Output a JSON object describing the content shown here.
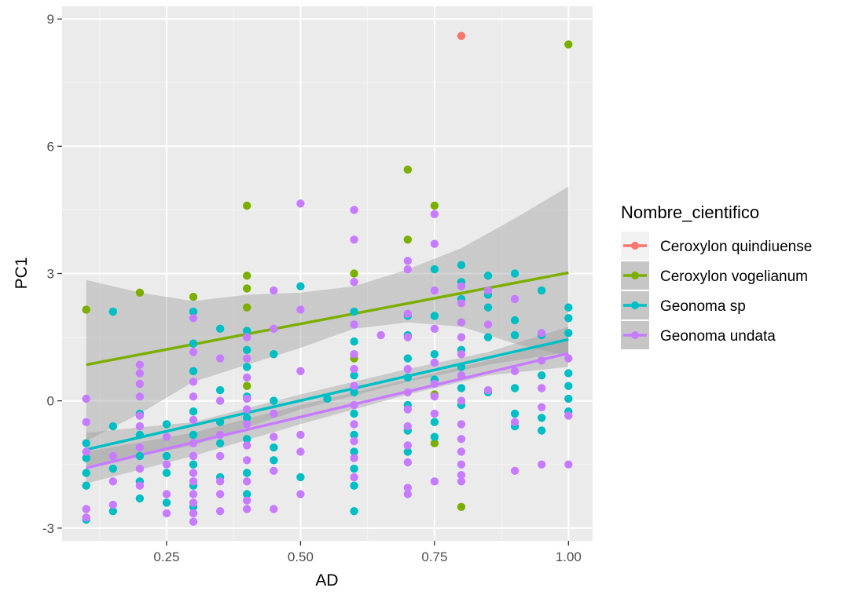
{
  "chart_data": {
    "type": "scatter",
    "xlabel": "AD",
    "ylabel": "PC1",
    "xlim": [
      0.055,
      1.045
    ],
    "ylim": [
      -3.3,
      9.3
    ],
    "x_ticks": [
      0.25,
      0.5,
      0.75,
      1.0
    ],
    "x_tick_labels": [
      "0.25",
      "0.50",
      "0.75",
      "1.00"
    ],
    "y_ticks": [
      -3,
      0,
      3,
      6,
      9
    ],
    "y_tick_labels": [
      "-3",
      "0",
      "3",
      "6",
      "9"
    ],
    "grid": true,
    "panel_color": "#ebebeb",
    "legend": {
      "title": "Nombre_cientifico",
      "position": "right"
    },
    "series": [
      {
        "name": "Ceroxylon quindiuense",
        "color": "#f8766d",
        "points": [
          [
            0.8,
            8.6
          ]
        ]
      },
      {
        "name": "Ceroxylon vogelianum",
        "color": "#7cae00",
        "fit": [
          [
            0.1,
            0.85
          ],
          [
            1.0,
            3.02
          ]
        ],
        "band": {
          "x": [
            0.1,
            0.2,
            0.3,
            0.4,
            0.5,
            0.6,
            0.7,
            0.8,
            0.9,
            1.0
          ],
          "upper": [
            2.85,
            2.55,
            2.35,
            2.5,
            2.55,
            2.7,
            3.1,
            3.6,
            4.3,
            5.05
          ],
          "lower": [
            -0.95,
            -0.3,
            0.45,
            0.85,
            1.25,
            1.7,
            1.85,
            1.75,
            1.35,
            1.05
          ]
        },
        "points": [
          [
            0.1,
            2.15
          ],
          [
            0.2,
            2.55
          ],
          [
            0.3,
            2.45
          ],
          [
            0.3,
            1.35
          ],
          [
            0.4,
            4.6
          ],
          [
            0.4,
            2.95
          ],
          [
            0.4,
            2.65
          ],
          [
            0.4,
            2.2
          ],
          [
            0.4,
            0.35
          ],
          [
            0.6,
            3.0
          ],
          [
            0.6,
            1.0
          ],
          [
            0.7,
            5.45
          ],
          [
            0.7,
            3.8
          ],
          [
            0.75,
            4.6
          ],
          [
            0.75,
            0.15
          ],
          [
            0.75,
            -1.0
          ],
          [
            0.8,
            1.85
          ],
          [
            0.8,
            -2.5
          ],
          [
            1.0,
            8.4
          ]
        ]
      },
      {
        "name": "Geonoma sp",
        "color": "#00bfc4",
        "fit": [
          [
            0.1,
            -1.15
          ],
          [
            1.0,
            1.45
          ]
        ],
        "band": {
          "x": [
            0.1,
            0.3,
            0.5,
            0.7,
            0.85,
            1.0
          ],
          "upper": [
            -0.75,
            -0.5,
            0.15,
            0.75,
            1.15,
            1.75
          ],
          "lower": [
            -1.55,
            -1.05,
            -0.2,
            0.45,
            0.85,
            1.15
          ]
        },
        "points": [
          [
            0.1,
            -1.0
          ],
          [
            0.1,
            -1.35
          ],
          [
            0.1,
            -1.7
          ],
          [
            0.1,
            -2.0
          ],
          [
            0.1,
            -2.8
          ],
          [
            0.15,
            2.1
          ],
          [
            0.15,
            -0.6
          ],
          [
            0.15,
            -1.6
          ],
          [
            0.15,
            -2.6
          ],
          [
            0.2,
            -0.3
          ],
          [
            0.2,
            -0.8
          ],
          [
            0.2,
            -1.3
          ],
          [
            0.2,
            -1.9
          ],
          [
            0.2,
            -2.3
          ],
          [
            0.25,
            -0.55
          ],
          [
            0.25,
            -1.3
          ],
          [
            0.25,
            -1.7
          ],
          [
            0.25,
            -2.4
          ],
          [
            0.3,
            2.1
          ],
          [
            0.3,
            1.35
          ],
          [
            0.3,
            0.7
          ],
          [
            0.3,
            -0.25
          ],
          [
            0.3,
            -0.8
          ],
          [
            0.3,
            -1.5
          ],
          [
            0.3,
            -2.0
          ],
          [
            0.3,
            -2.5
          ],
          [
            0.35,
            1.7
          ],
          [
            0.35,
            0.25
          ],
          [
            0.35,
            -0.5
          ],
          [
            0.35,
            -1.0
          ],
          [
            0.35,
            -1.8
          ],
          [
            0.4,
            1.65
          ],
          [
            0.4,
            1.2
          ],
          [
            0.4,
            0.8
          ],
          [
            0.4,
            0.1
          ],
          [
            0.4,
            -0.4
          ],
          [
            0.4,
            -0.9
          ],
          [
            0.4,
            -1.7
          ],
          [
            0.4,
            -2.2
          ],
          [
            0.45,
            1.1
          ],
          [
            0.45,
            0.0
          ],
          [
            0.45,
            -1.1
          ],
          [
            0.45,
            -1.4
          ],
          [
            0.5,
            2.7
          ],
          [
            0.5,
            -1.8
          ],
          [
            0.55,
            0.05
          ],
          [
            0.6,
            2.1
          ],
          [
            0.6,
            1.4
          ],
          [
            0.6,
            0.6
          ],
          [
            0.6,
            0.2
          ],
          [
            0.6,
            -0.3
          ],
          [
            0.6,
            -0.8
          ],
          [
            0.6,
            -1.2
          ],
          [
            0.6,
            -1.6
          ],
          [
            0.6,
            -2.0
          ],
          [
            0.6,
            -2.6
          ],
          [
            0.7,
            2.0
          ],
          [
            0.7,
            1.55
          ],
          [
            0.7,
            1.0
          ],
          [
            0.7,
            0.55
          ],
          [
            0.7,
            -0.1
          ],
          [
            0.7,
            -0.7
          ],
          [
            0.7,
            -1.2
          ],
          [
            0.75,
            3.1
          ],
          [
            0.75,
            2.0
          ],
          [
            0.75,
            1.1
          ],
          [
            0.75,
            0.9
          ],
          [
            0.75,
            0.5
          ],
          [
            0.75,
            -0.5
          ],
          [
            0.75,
            -0.85
          ],
          [
            0.8,
            3.2
          ],
          [
            0.8,
            2.8
          ],
          [
            0.8,
            2.4
          ],
          [
            0.8,
            1.2
          ],
          [
            0.8,
            0.8
          ],
          [
            0.8,
            0.3
          ],
          [
            0.8,
            -0.1
          ],
          [
            0.85,
            2.95
          ],
          [
            0.85,
            2.5
          ],
          [
            0.85,
            2.2
          ],
          [
            0.85,
            1.5
          ],
          [
            0.85,
            0.2
          ],
          [
            0.9,
            3.0
          ],
          [
            0.9,
            1.9
          ],
          [
            0.9,
            1.55
          ],
          [
            0.9,
            0.3
          ],
          [
            0.9,
            -0.3
          ],
          [
            0.9,
            -0.6
          ],
          [
            0.95,
            2.6
          ],
          [
            0.95,
            1.55
          ],
          [
            0.95,
            0.6
          ],
          [
            0.95,
            -0.4
          ],
          [
            0.95,
            -0.7
          ],
          [
            1.0,
            2.2
          ],
          [
            1.0,
            1.95
          ],
          [
            1.0,
            1.6
          ],
          [
            1.0,
            0.65
          ],
          [
            1.0,
            0.35
          ],
          [
            1.0,
            0.05
          ],
          [
            1.0,
            -0.25
          ]
        ]
      },
      {
        "name": "Geonoma undata",
        "color": "#c77cff",
        "fit": [
          [
            0.1,
            -1.58
          ],
          [
            1.0,
            1.12
          ]
        ],
        "band": {
          "x": [
            0.1,
            0.3,
            0.5,
            0.7,
            0.85,
            1.0
          ],
          "upper": [
            -1.2,
            -0.75,
            -0.1,
            0.5,
            0.95,
            1.45
          ],
          "lower": [
            -1.95,
            -1.3,
            -0.55,
            0.15,
            0.6,
            0.8
          ]
        },
        "points": [
          [
            0.1,
            0.05
          ],
          [
            0.1,
            -0.5
          ],
          [
            0.1,
            -1.2
          ],
          [
            0.1,
            -2.55
          ],
          [
            0.1,
            -2.75
          ],
          [
            0.15,
            -1.3
          ],
          [
            0.15,
            -1.9
          ],
          [
            0.15,
            -2.45
          ],
          [
            0.2,
            0.85
          ],
          [
            0.2,
            0.65
          ],
          [
            0.2,
            0.4
          ],
          [
            0.2,
            0.1
          ],
          [
            0.2,
            -0.35
          ],
          [
            0.2,
            -0.6
          ],
          [
            0.2,
            -1.1
          ],
          [
            0.2,
            -1.6
          ],
          [
            0.2,
            -2.0
          ],
          [
            0.25,
            -0.85
          ],
          [
            0.25,
            -1.5
          ],
          [
            0.25,
            -2.2
          ],
          [
            0.25,
            -2.65
          ],
          [
            0.3,
            1.95
          ],
          [
            0.3,
            1.15
          ],
          [
            0.3,
            0.45
          ],
          [
            0.3,
            0.1
          ],
          [
            0.3,
            -0.45
          ],
          [
            0.3,
            -1.0
          ],
          [
            0.3,
            -1.3
          ],
          [
            0.3,
            -1.7
          ],
          [
            0.3,
            -1.9
          ],
          [
            0.3,
            -2.2
          ],
          [
            0.3,
            -2.4
          ],
          [
            0.3,
            -2.65
          ],
          [
            0.3,
            -2.85
          ],
          [
            0.35,
            1.0
          ],
          [
            0.35,
            0.0
          ],
          [
            0.35,
            -0.8
          ],
          [
            0.35,
            -1.3
          ],
          [
            0.35,
            -1.9
          ],
          [
            0.35,
            -2.2
          ],
          [
            0.35,
            -2.6
          ],
          [
            0.4,
            1.5
          ],
          [
            0.4,
            1.0
          ],
          [
            0.4,
            0.55
          ],
          [
            0.4,
            0.05
          ],
          [
            0.4,
            -0.2
          ],
          [
            0.4,
            -0.55
          ],
          [
            0.4,
            -1.05
          ],
          [
            0.4,
            -1.4
          ],
          [
            0.4,
            -1.9
          ],
          [
            0.4,
            -2.35
          ],
          [
            0.4,
            -2.55
          ],
          [
            0.45,
            2.6
          ],
          [
            0.45,
            1.7
          ],
          [
            0.45,
            -0.3
          ],
          [
            0.45,
            -0.85
          ],
          [
            0.45,
            -1.65
          ],
          [
            0.45,
            -2.55
          ],
          [
            0.5,
            4.65
          ],
          [
            0.5,
            2.15
          ],
          [
            0.5,
            0.7
          ],
          [
            0.5,
            -0.8
          ],
          [
            0.5,
            -1.2
          ],
          [
            0.5,
            -2.2
          ],
          [
            0.6,
            4.5
          ],
          [
            0.6,
            3.8
          ],
          [
            0.6,
            2.8
          ],
          [
            0.6,
            1.8
          ],
          [
            0.6,
            1.1
          ],
          [
            0.6,
            0.75
          ],
          [
            0.6,
            0.35
          ],
          [
            0.6,
            -0.1
          ],
          [
            0.6,
            -0.55
          ],
          [
            0.6,
            -0.95
          ],
          [
            0.6,
            -1.35
          ],
          [
            0.6,
            -1.8
          ],
          [
            0.65,
            1.55
          ],
          [
            0.7,
            3.3
          ],
          [
            0.7,
            3.1
          ],
          [
            0.7,
            2.05
          ],
          [
            0.7,
            1.5
          ],
          [
            0.7,
            0.75
          ],
          [
            0.7,
            0.2
          ],
          [
            0.7,
            -0.2
          ],
          [
            0.7,
            -0.6
          ],
          [
            0.7,
            -1.05
          ],
          [
            0.7,
            -1.45
          ],
          [
            0.7,
            -2.05
          ],
          [
            0.7,
            -2.2
          ],
          [
            0.75,
            4.4
          ],
          [
            0.75,
            3.7
          ],
          [
            0.75,
            2.6
          ],
          [
            0.75,
            1.7
          ],
          [
            0.75,
            0.9
          ],
          [
            0.75,
            0.4
          ],
          [
            0.75,
            0.1
          ],
          [
            0.75,
            -0.3
          ],
          [
            0.75,
            -1.9
          ],
          [
            0.8,
            2.7
          ],
          [
            0.8,
            2.3
          ],
          [
            0.8,
            1.85
          ],
          [
            0.8,
            1.5
          ],
          [
            0.8,
            1.1
          ],
          [
            0.8,
            0.6
          ],
          [
            0.8,
            0.0
          ],
          [
            0.8,
            -0.55
          ],
          [
            0.8,
            -0.9
          ],
          [
            0.8,
            -1.2
          ],
          [
            0.8,
            -1.5
          ],
          [
            0.8,
            -1.75
          ],
          [
            0.8,
            -1.9
          ],
          [
            0.85,
            2.6
          ],
          [
            0.85,
            1.8
          ],
          [
            0.85,
            0.25
          ],
          [
            0.9,
            2.4
          ],
          [
            0.9,
            0.7
          ],
          [
            0.9,
            -0.5
          ],
          [
            0.9,
            -1.65
          ],
          [
            0.95,
            1.6
          ],
          [
            0.95,
            0.95
          ],
          [
            0.95,
            0.3
          ],
          [
            0.95,
            -0.15
          ],
          [
            0.95,
            -1.5
          ],
          [
            1.0,
            1.0
          ],
          [
            1.0,
            -0.35
          ],
          [
            1.0,
            -1.5
          ]
        ]
      }
    ]
  }
}
